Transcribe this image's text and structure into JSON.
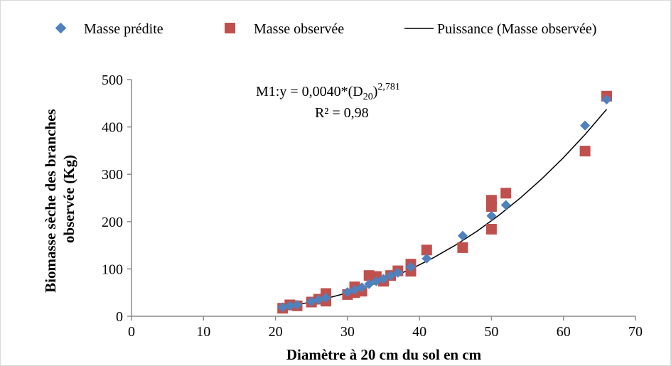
{
  "chart_data": {
    "type": "scatter",
    "title": "",
    "xlabel": "Diamètre à 20 cm du sol en cm",
    "ylabel": "Biomasse sèche des branches observée (Kg)",
    "xlim": [
      0,
      70
    ],
    "ylim": [
      0,
      500
    ],
    "xticks": [
      0,
      10,
      20,
      30,
      40,
      50,
      60,
      70
    ],
    "yticks": [
      0,
      100,
      200,
      300,
      400,
      500
    ],
    "grid": false,
    "legend": "top",
    "series": [
      {
        "name": "Masse prédite",
        "marker": "diamond",
        "color": "#4f81bd",
        "points": [
          {
            "x": 21.0,
            "y": 19
          },
          {
            "x": 22.0,
            "y": 22
          },
          {
            "x": 23.0,
            "y": 24
          },
          {
            "x": 25.0,
            "y": 31
          },
          {
            "x": 26.0,
            "y": 35
          },
          {
            "x": 27.0,
            "y": 39
          },
          {
            "x": 30.0,
            "y": 51
          },
          {
            "x": 31.0,
            "y": 56
          },
          {
            "x": 32.0,
            "y": 61
          },
          {
            "x": 33.0,
            "y": 68
          },
          {
            "x": 34.0,
            "y": 74
          },
          {
            "x": 35.0,
            "y": 79
          },
          {
            "x": 36.0,
            "y": 86
          },
          {
            "x": 37.0,
            "y": 92
          },
          {
            "x": 38.8,
            "y": 104
          },
          {
            "x": 41.0,
            "y": 122
          },
          {
            "x": 46.0,
            "y": 170
          },
          {
            "x": 50.0,
            "y": 212
          },
          {
            "x": 52.0,
            "y": 235
          },
          {
            "x": 63.0,
            "y": 403
          },
          {
            "x": 66.0,
            "y": 458
          }
        ]
      },
      {
        "name": "Masse observée",
        "marker": "square",
        "color": "#c0504d",
        "points": [
          {
            "x": 21.0,
            "y": 17
          },
          {
            "x": 22.0,
            "y": 24
          },
          {
            "x": 23.0,
            "y": 22
          },
          {
            "x": 25.0,
            "y": 30
          },
          {
            "x": 26.0,
            "y": 36
          },
          {
            "x": 27.0,
            "y": 48
          },
          {
            "x": 27.0,
            "y": 32
          },
          {
            "x": 30.0,
            "y": 46
          },
          {
            "x": 31.0,
            "y": 62
          },
          {
            "x": 31.0,
            "y": 50
          },
          {
            "x": 32.0,
            "y": 53
          },
          {
            "x": 33.0,
            "y": 86
          },
          {
            "x": 34.0,
            "y": 84
          },
          {
            "x": 35.0,
            "y": 74
          },
          {
            "x": 36.0,
            "y": 86
          },
          {
            "x": 37.0,
            "y": 96
          },
          {
            "x": 38.8,
            "y": 110
          },
          {
            "x": 38.8,
            "y": 95
          },
          {
            "x": 41.0,
            "y": 140
          },
          {
            "x": 46.0,
            "y": 145
          },
          {
            "x": 50.0,
            "y": 245
          },
          {
            "x": 50.0,
            "y": 232
          },
          {
            "x": 50.0,
            "y": 184
          },
          {
            "x": 52.0,
            "y": 260
          },
          {
            "x": 63.0,
            "y": 349
          },
          {
            "x": 66.0,
            "y": 465
          }
        ]
      },
      {
        "name": "Puissance (Masse observée)",
        "type": "line",
        "color": "#000000",
        "x": [
          21,
          24,
          27,
          30,
          33,
          36,
          39,
          42,
          45,
          48,
          51,
          54,
          57,
          60,
          63,
          66
        ],
        "values": [
          19.2,
          27.3,
          37.4,
          49.5,
          64.1,
          81.2,
          101.1,
          124.1,
          150.3,
          179.9,
          213.0,
          249.7,
          290.4,
          335.1,
          384.0,
          437.2
        ]
      }
    ],
    "annotations": {
      "equation_prefix": "M1:y = 0,0040*(D",
      "equation_sub": "20",
      "equation_paren": ")",
      "equation_exp": "2,781",
      "r2": "R² = 0,98"
    }
  }
}
